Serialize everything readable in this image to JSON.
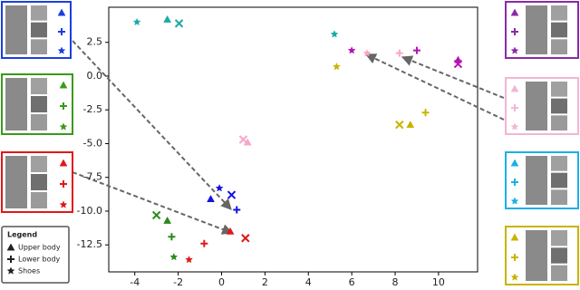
{
  "chart_data": {
    "type": "scatter",
    "xlim": [
      -5.2,
      11.8
    ],
    "ylim": [
      -14.5,
      5.1
    ],
    "xticks": [
      -4,
      -2,
      0,
      2,
      4,
      6,
      8,
      10
    ],
    "yticks": [
      2.5,
      {
        "value": 0,
        "label": "0.0"
      },
      -2.5,
      {
        "value": -5,
        "label": "-5.0"
      },
      -7.5,
      {
        "value": -10,
        "label": "-10.0"
      },
      -12.5
    ],
    "series": [
      {
        "color": "#1aaba8",
        "x": [
          -3.9,
          -2.5,
          -1.96,
          5.2
        ],
        "y": [
          4.0,
          4.2,
          3.9,
          3.1
        ],
        "markers": [
          "star",
          "triangle",
          "x",
          "star"
        ]
      },
      {
        "color": "#1414e0",
        "x": [
          -0.5,
          -0.1,
          0.46,
          0.7
        ],
        "y": [
          -9.1,
          -8.3,
          -8.8,
          -9.9
        ],
        "markers": [
          "triangle",
          "star",
          "x",
          "plus"
        ]
      },
      {
        "color": "#2a8a1a",
        "x": [
          -3.0,
          -2.5,
          -2.3,
          -2.2
        ],
        "y": [
          -10.3,
          -10.7,
          -11.9,
          -13.4
        ],
        "markers": [
          "x",
          "triangle",
          "plus",
          "star"
        ]
      },
      {
        "color": "#e01818",
        "x": [
          -0.8,
          -1.5,
          0.4,
          1.1
        ],
        "y": [
          -12.4,
          -13.6,
          -11.5,
          -12.0
        ],
        "markers": [
          "plus",
          "star",
          "triangle",
          "x"
        ]
      },
      {
        "color": "#f7a6c8",
        "x": [
          1.0,
          1.2,
          6.7,
          8.2
        ],
        "y": [
          -4.7,
          -4.9,
          1.7,
          1.7
        ],
        "markers": [
          "x",
          "triangle",
          "star",
          "plus"
        ]
      },
      {
        "color": "#b414b4",
        "x": [
          6.0,
          9.0,
          10.9,
          10.9
        ],
        "y": [
          1.9,
          1.9,
          1.2,
          0.9
        ],
        "markers": [
          "star",
          "plus",
          "triangle",
          "x"
        ]
      },
      {
        "color": "#c8b400",
        "x": [
          5.3,
          8.2,
          8.7,
          9.4
        ],
        "y": [
          0.7,
          -3.6,
          -3.6,
          -2.7
        ],
        "markers": [
          "star",
          "x",
          "triangle",
          "plus"
        ]
      }
    ],
    "legend": {
      "title": "Legend",
      "entries": [
        {
          "marker": "triangle",
          "label": "Upper body"
        },
        {
          "marker": "plus",
          "label": "Lower body"
        },
        {
          "marker": "star",
          "label": "Shoes"
        }
      ]
    }
  }
}
